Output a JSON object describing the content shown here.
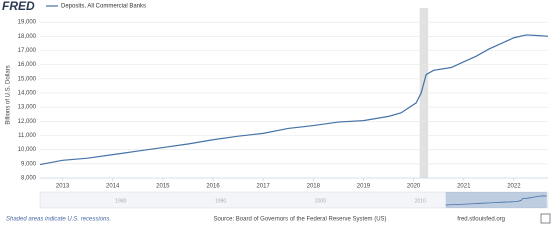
{
  "chart_data": {
    "type": "line",
    "logo": "FRED",
    "y_label": "Billions of U.S. Dollars",
    "series": [
      {
        "name": "Deposits, All Commercial Banks",
        "color": "#4572a7",
        "x": [
          2012.55,
          2013.0,
          2013.5,
          2014.0,
          2014.5,
          2015.0,
          2015.5,
          2016.0,
          2016.5,
          2017.0,
          2017.5,
          2018.0,
          2018.5,
          2019.0,
          2019.5,
          2019.75,
          2020.05,
          2020.15,
          2020.25,
          2020.4,
          2020.75,
          2021.0,
          2021.25,
          2021.5,
          2021.75,
          2022.0,
          2022.25,
          2022.5,
          2022.68
        ],
        "values": [
          8950,
          9250,
          9400,
          9650,
          9900,
          10150,
          10400,
          10700,
          10950,
          11150,
          11500,
          11700,
          11950,
          12050,
          12350,
          12600,
          13300,
          14000,
          15300,
          15600,
          15800,
          16200,
          16600,
          17100,
          17500,
          17900,
          18100,
          18050,
          18000
        ]
      }
    ],
    "recessions": [
      [
        2020.12,
        2020.29
      ]
    ],
    "xlim": [
      2012.55,
      2022.68
    ],
    "xticks": [
      2013,
      2014,
      2015,
      2016,
      2017,
      2018,
      2019,
      2020,
      2021,
      2022
    ],
    "ylim": [
      8000,
      20000
    ],
    "yticks": [
      {
        "value": 8000,
        "label": "8,000"
      },
      {
        "value": 9000,
        "label": "9,000"
      },
      {
        "value": 10000,
        "label": "10,000"
      },
      {
        "value": 11000,
        "label": "11,000"
      },
      {
        "value": 12000,
        "label": "12,000"
      },
      {
        "value": 13000,
        "label": "13,000"
      },
      {
        "value": 14000,
        "label": "14,000"
      },
      {
        "value": 15000,
        "label": "15,000"
      },
      {
        "value": 16000,
        "label": "16,000"
      },
      {
        "value": 17000,
        "label": "17,000"
      },
      {
        "value": 18000,
        "label": "18,000"
      },
      {
        "value": 19000,
        "label": "19,000"
      }
    ],
    "grid": true,
    "navigator_xlim": [
      1971.9,
      2022.8
    ],
    "navigator_xticks": [
      1980,
      1990,
      2000,
      2010
    ],
    "recession_note": "Shaded areas indicate U.S. recessions.",
    "source": "Source: Board of Governors of the Federal Reserve System (US)",
    "site": "fred.stlouisfed.org"
  }
}
